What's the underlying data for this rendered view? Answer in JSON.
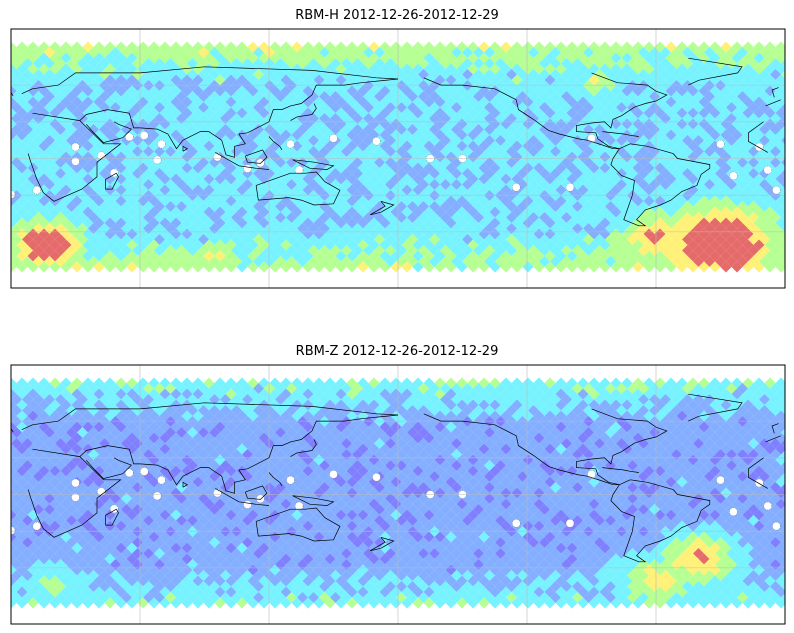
{
  "panels": [
    {
      "title": "RBM-H 2012-12-26-2012-12-29",
      "hotspots": [
        {
          "lon": 17,
          "lat": -60,
          "level": 1.0,
          "r": 28
        },
        {
          "lon": 95,
          "lat": -68,
          "level": 0.55,
          "r": 18
        },
        {
          "lon": 60,
          "lat": -70,
          "level": 0.45,
          "r": 18
        },
        {
          "lon": 272,
          "lat": 52,
          "level": 0.5,
          "r": 18
        },
        {
          "lon": 330,
          "lat": -60,
          "level": 1.0,
          "r": 45
        },
        {
          "lon": 300,
          "lat": -55,
          "level": 0.75,
          "r": 30
        },
        {
          "lon": 240,
          "lat": -68,
          "level": 0.45,
          "r": 20
        }
      ],
      "bandLevel": 0.25
    },
    {
      "title": "RBM-Z 2012-12-26-2012-12-29",
      "hotspots": [
        {
          "lon": 320,
          "lat": -45,
          "level": 0.7,
          "r": 30
        },
        {
          "lon": 300,
          "lat": -60,
          "level": 0.6,
          "r": 30
        },
        {
          "lon": 20,
          "lat": -62,
          "level": 0.35,
          "r": 25
        }
      ],
      "bandLevel": 0.12
    }
  ],
  "colors": {
    "low": "#6a6aff",
    "midlow": "#6fa0ff",
    "mid": "#5ff0ff",
    "midhigh": "#a8ff80",
    "high": "#ffef5f",
    "top": "#e05050"
  }
}
